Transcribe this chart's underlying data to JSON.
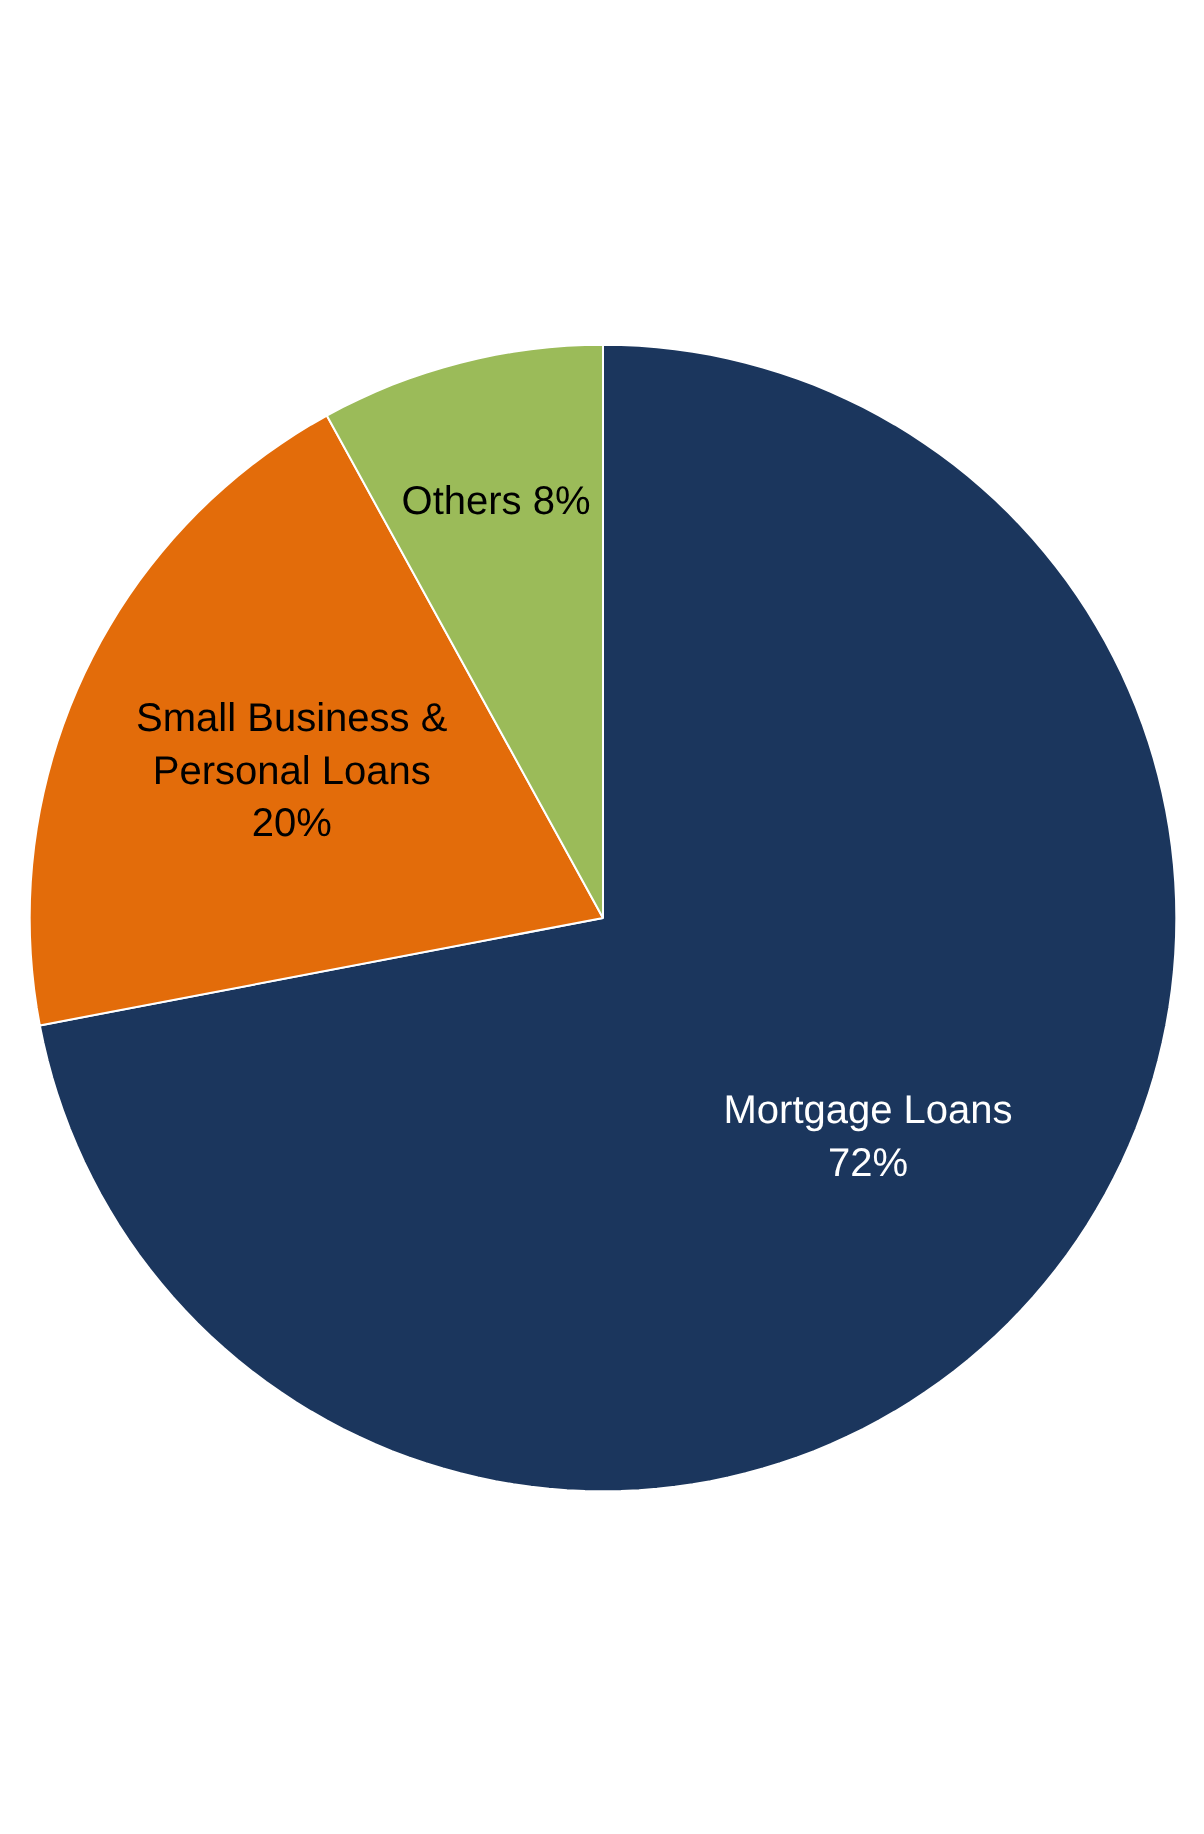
{
  "chart_data": {
    "type": "pie",
    "categories": [
      "Mortgage Loans",
      "Small Business & Personal Loans",
      "Others"
    ],
    "values": [
      72,
      20,
      8
    ],
    "colors": [
      "#1b365d",
      "#e36c0a",
      "#9bbb59"
    ],
    "value_labels": [
      "72%",
      "20%",
      "8%"
    ],
    "legend": false
  }
}
